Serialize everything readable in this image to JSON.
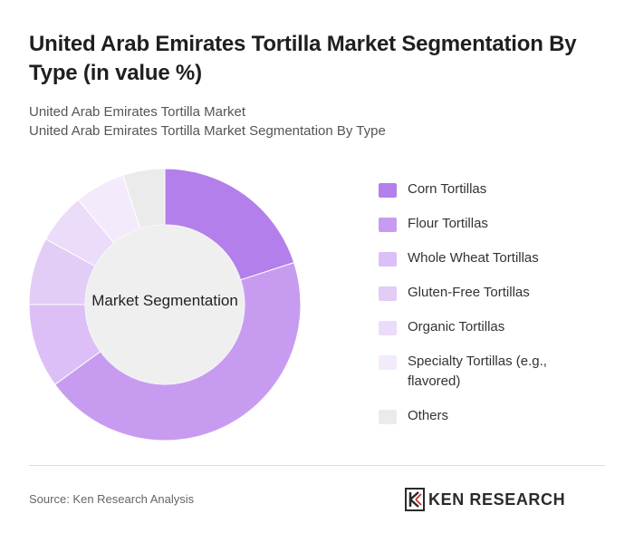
{
  "header": {
    "title": "United Arab Emirates Tortilla Market Segmentation By Type (in value %)",
    "subtitle_line1": "United Arab Emirates Tortilla Market",
    "subtitle_line2": "United Arab Emirates Tortilla Market Segmentation By Type"
  },
  "chart_data": {
    "type": "pie",
    "center_label": "Market Segmentation",
    "categories": [
      "Corn Tortillas",
      "Flour Tortillas",
      "Whole Wheat Tortillas",
      "Gluten-Free Tortillas",
      "Organic Tortillas",
      "Specialty Tortillas (e.g., flavored)",
      "Others"
    ],
    "values": [
      20,
      45,
      10,
      8,
      6,
      6,
      5
    ],
    "colors": [
      "#b37fea",
      "#c79cf0",
      "#dbbff6",
      "#e1cdf6",
      "#ebdcf9",
      "#f3ebfb",
      "#ebebeb"
    ],
    "legend_position": "right"
  },
  "footer": {
    "source": "Source: Ken Research Analysis",
    "logo_text": "KEN RESEARCH"
  }
}
